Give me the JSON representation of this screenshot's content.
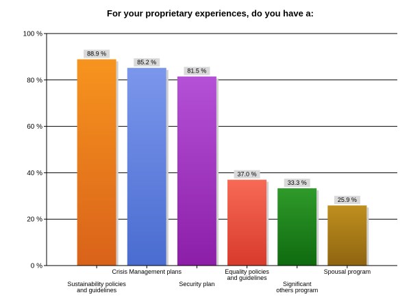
{
  "chart_data": {
    "type": "bar",
    "title": "For your proprietary experiences, do you have a:",
    "xlabel": "",
    "ylabel": "",
    "ylim": [
      0,
      100
    ],
    "yticks": [
      {
        "value": 0,
        "label": "0 %"
      },
      {
        "value": 20,
        "label": "20 %"
      },
      {
        "value": 40,
        "label": "40 %"
      },
      {
        "value": 60,
        "label": "60 %"
      },
      {
        "value": 80,
        "label": "80 %"
      },
      {
        "value": 100,
        "label": "100 %"
      }
    ],
    "grid": true,
    "categories": [
      [
        "Sustainability policies",
        "and guidelines"
      ],
      [
        "Crisis Management plans"
      ],
      [
        "Security plan"
      ],
      [
        "Equality policies",
        "and guidelines"
      ],
      [
        "Significant",
        "others program"
      ],
      [
        "Spousal program"
      ]
    ],
    "values": [
      88.9,
      85.2,
      81.5,
      37.0,
      33.3,
      25.9
    ],
    "value_labels": [
      "88.9 %",
      "85.2 %",
      "81.5 %",
      "37.0 %",
      "33.3 %",
      "25.9 %"
    ],
    "colors": [
      {
        "top": "#f7941e",
        "bottom": "#d9621a"
      },
      {
        "top": "#7b97ec",
        "bottom": "#4a6cd0"
      },
      {
        "top": "#b451d6",
        "bottom": "#8c1ea8"
      },
      {
        "top": "#f76a55",
        "bottom": "#d83a2c"
      },
      {
        "top": "#2f9a2a",
        "bottom": "#0f6a0f"
      },
      {
        "top": "#bf8f1f",
        "bottom": "#8f6410"
      }
    ]
  }
}
